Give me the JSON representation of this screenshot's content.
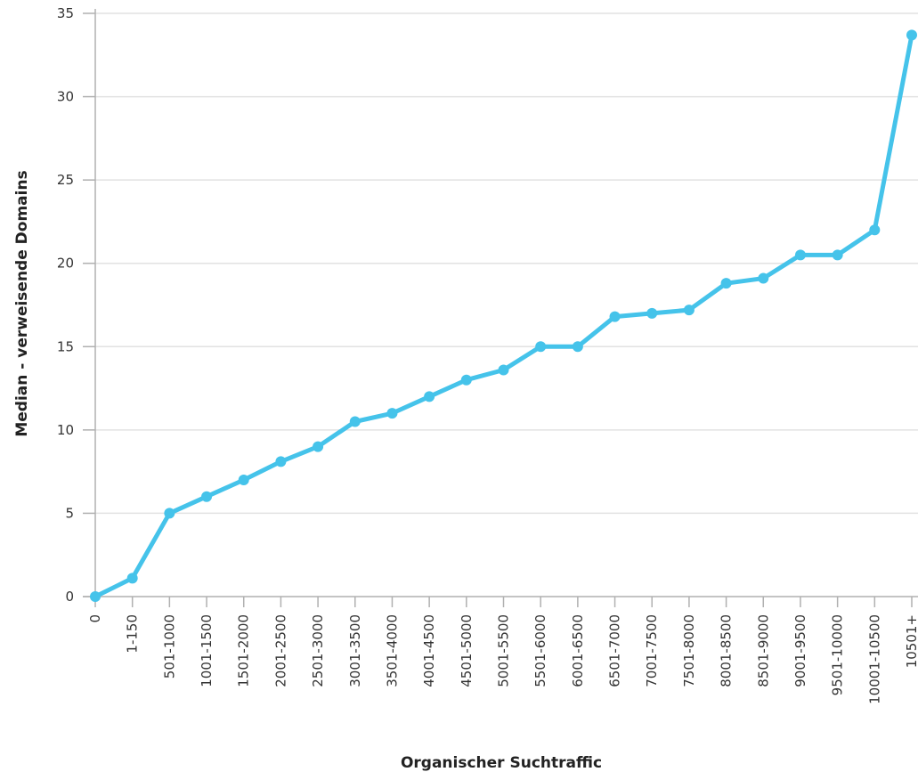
{
  "chart_data": {
    "type": "line",
    "title": "",
    "xlabel": "Organischer Suchtraffic",
    "ylabel": "Median - verweisende Domains",
    "ylim": [
      0,
      35
    ],
    "yticks": [
      0,
      5,
      10,
      15,
      20,
      25,
      30,
      35
    ],
    "grid": "horizontal",
    "legend": "none",
    "line_color": "#45c3ea",
    "categories": [
      "0",
      "1-150",
      "501-1000",
      "1001-1500",
      "1501-2000",
      "2001-2500",
      "2501-3000",
      "3001-3500",
      "3501-4000",
      "4001-4500",
      "4501-5000",
      "5001-5500",
      "5501-6000",
      "6001-6500",
      "6501-7000",
      "7001-7500",
      "7501-8000",
      "8001-8500",
      "8501-9000",
      "9001-9500",
      "9501-10000",
      "10001-10500",
      "10501+"
    ],
    "series": [
      {
        "values": [
          0,
          1.1,
          5,
          6,
          7,
          8.1,
          9,
          10.5,
          11,
          12,
          13,
          13.6,
          15,
          15,
          16.8,
          17,
          17.2,
          18.8,
          19.1,
          20.5,
          20.5,
          22,
          33.7
        ]
      }
    ]
  }
}
